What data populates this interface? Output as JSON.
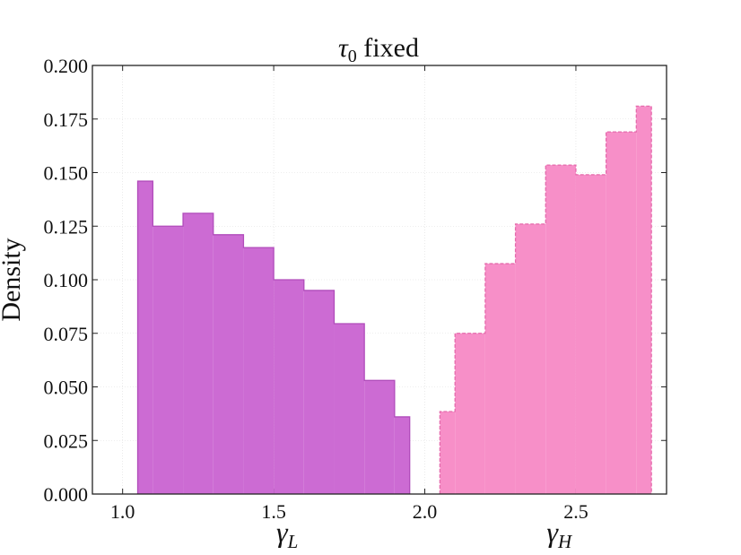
{
  "chart_data": {
    "type": "histogram",
    "title": {
      "symbol": "τ",
      "sub": "0",
      "rest": " fixed"
    },
    "ylabel": "Density",
    "xlim": [
      0.9,
      2.8
    ],
    "ylim": [
      0,
      0.2
    ],
    "xticks": [
      {
        "value": 1.0,
        "label": "1.0"
      },
      {
        "value": 1.5,
        "label": "1.5"
      },
      {
        "value": 2.0,
        "label": "2.0"
      },
      {
        "value": 2.5,
        "label": "2.5"
      }
    ],
    "yticks": [
      {
        "value": 0,
        "label": "0.000"
      },
      {
        "value": 0.025,
        "label": "0.025"
      },
      {
        "value": 0.05,
        "label": "0.050"
      },
      {
        "value": 0.075,
        "label": "0.075"
      },
      {
        "value": 0.1,
        "label": "0.100"
      },
      {
        "value": 0.125,
        "label": "0.125"
      },
      {
        "value": 0.15,
        "label": "0.150"
      },
      {
        "value": 0.175,
        "label": "0.175"
      },
      {
        "value": 0.2,
        "label": "0.200"
      }
    ],
    "grid": true,
    "series": [
      {
        "xlabel": {
          "symbol": "γ",
          "sub": "L"
        },
        "color": "#cc6bd3",
        "edge": "#b14cbb",
        "dashed": false,
        "bins": [
          1.05,
          1.1,
          1.2,
          1.3,
          1.4,
          1.5,
          1.6,
          1.7,
          1.8,
          1.9,
          1.95
        ],
        "values": [
          0.146,
          0.125,
          0.131,
          0.121,
          0.115,
          0.1,
          0.095,
          0.0795,
          0.053,
          0.036
        ]
      },
      {
        "xlabel": {
          "symbol": "γ",
          "sub": "H"
        },
        "color": "#f78fc8",
        "edge": "#e56aac",
        "dashed": true,
        "bins": [
          2.05,
          2.1,
          2.2,
          2.3,
          2.4,
          2.5,
          2.6,
          2.7,
          2.75
        ],
        "values": [
          0.0385,
          0.075,
          0.1075,
          0.126,
          0.1535,
          0.149,
          0.169,
          0.181
        ]
      }
    ]
  }
}
